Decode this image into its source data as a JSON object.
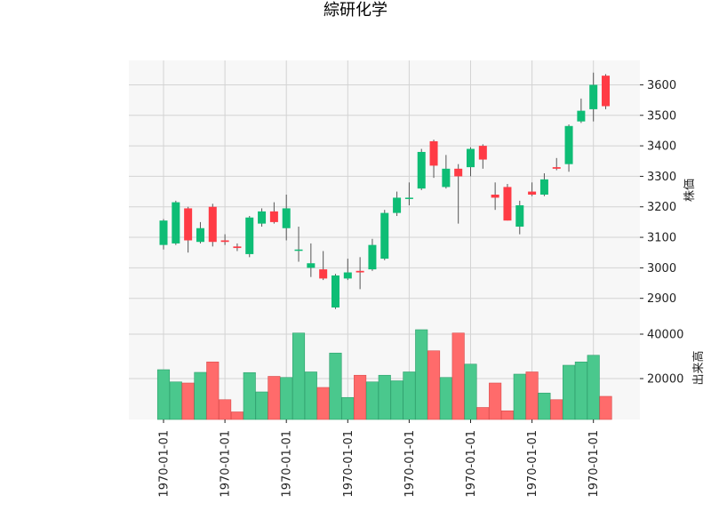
{
  "chart_data": {
    "type": "candlestick",
    "title": "綜研化学",
    "price_ylabel": "株価",
    "volume_ylabel": "出来高",
    "price_ticks": [
      2900,
      3000,
      3100,
      3200,
      3300,
      3400,
      3500,
      3600
    ],
    "volume_ticks": [
      20000,
      40000
    ],
    "x_tick_labels": [
      "1970-01-01",
      "1970-01-01",
      "1970-01-01",
      "1970-01-01",
      "1970-01-01",
      "1970-01-01",
      "1970-01-01",
      "1970-01-01"
    ],
    "x_tick_positions": [
      0,
      5,
      10,
      15,
      20,
      25,
      30,
      35
    ],
    "ylim_price": [
      2835,
      3680
    ],
    "ylim_volume": [
      0,
      44000
    ],
    "up_color": "#0ebd75",
    "down_color": "#ff3b45",
    "up_volume_color": "#4ac88d",
    "down_volume_color": "#ff6b6b",
    "candles": [
      {
        "o": 3075,
        "h": 3160,
        "l": 3060,
        "c": 3155
      },
      {
        "o": 3080,
        "h": 3220,
        "l": 3075,
        "c": 3215
      },
      {
        "o": 3195,
        "h": 3200,
        "l": 3050,
        "c": 3090
      },
      {
        "o": 3085,
        "h": 3150,
        "l": 3080,
        "c": 3130
      },
      {
        "o": 3200,
        "h": 3210,
        "l": 3070,
        "c": 3085
      },
      {
        "o": 3090,
        "h": 3110,
        "l": 3075,
        "c": 3085
      },
      {
        "o": 3070,
        "h": 3080,
        "l": 3055,
        "c": 3065
      },
      {
        "o": 3045,
        "h": 3170,
        "l": 3035,
        "c": 3165
      },
      {
        "o": 3145,
        "h": 3195,
        "l": 3135,
        "c": 3185
      },
      {
        "o": 3185,
        "h": 3215,
        "l": 3145,
        "c": 3150
      },
      {
        "o": 3130,
        "h": 3240,
        "l": 3090,
        "c": 3195
      },
      {
        "o": 3060,
        "h": 3135,
        "l": 3020,
        "c": 3060
      },
      {
        "o": 3000,
        "h": 3080,
        "l": 2970,
        "c": 3015
      },
      {
        "o": 2995,
        "h": 3055,
        "l": 2960,
        "c": 2965
      },
      {
        "o": 2870,
        "h": 2980,
        "l": 2865,
        "c": 2975
      },
      {
        "o": 2965,
        "h": 3030,
        "l": 2960,
        "c": 2985
      },
      {
        "o": 2990,
        "h": 3035,
        "l": 2930,
        "c": 2985
      },
      {
        "o": 2995,
        "h": 3095,
        "l": 2990,
        "c": 3075
      },
      {
        "o": 3030,
        "h": 3190,
        "l": 3025,
        "c": 3180
      },
      {
        "o": 3180,
        "h": 3250,
        "l": 3170,
        "c": 3230
      },
      {
        "o": 3230,
        "h": 3280,
        "l": 3205,
        "c": 3230
      },
      {
        "o": 3260,
        "h": 3390,
        "l": 3255,
        "c": 3380
      },
      {
        "o": 3415,
        "h": 3420,
        "l": 3295,
        "c": 3335
      },
      {
        "o": 3265,
        "h": 3370,
        "l": 3260,
        "c": 3325
      },
      {
        "o": 3325,
        "h": 3340,
        "l": 3145,
        "c": 3300
      },
      {
        "o": 3330,
        "h": 3395,
        "l": 3300,
        "c": 3390
      },
      {
        "o": 3400,
        "h": 3405,
        "l": 3325,
        "c": 3355
      },
      {
        "o": 3240,
        "h": 3280,
        "l": 3190,
        "c": 3230
      },
      {
        "o": 3265,
        "h": 3275,
        "l": 3155,
        "c": 3155
      },
      {
        "o": 3135,
        "h": 3220,
        "l": 3110,
        "c": 3205
      },
      {
        "o": 3250,
        "h": 3280,
        "l": 3235,
        "c": 3240
      },
      {
        "o": 3240,
        "h": 3310,
        "l": 3235,
        "c": 3290
      },
      {
        "o": 3330,
        "h": 3360,
        "l": 3320,
        "c": 3325
      },
      {
        "o": 3340,
        "h": 3470,
        "l": 3315,
        "c": 3465
      },
      {
        "o": 3480,
        "h": 3555,
        "l": 3475,
        "c": 3515
      },
      {
        "o": 3520,
        "h": 3640,
        "l": 3480,
        "c": 3600
      },
      {
        "o": 3630,
        "h": 3635,
        "l": 3520,
        "c": 3530
      }
    ],
    "volumes": [
      24000,
      18500,
      18000,
      22800,
      27500,
      10500,
      5000,
      22700,
      14000,
      21000,
      20500,
      40500,
      23000,
      16000,
      31500,
      11500,
      21500,
      18500,
      21500,
      19000,
      23000,
      42000,
      32500,
      20500,
      40500,
      26500,
      7000,
      18000,
      5500,
      22000,
      23000,
      13500,
      10500,
      26000,
      27500,
      30500,
      12000
    ]
  }
}
